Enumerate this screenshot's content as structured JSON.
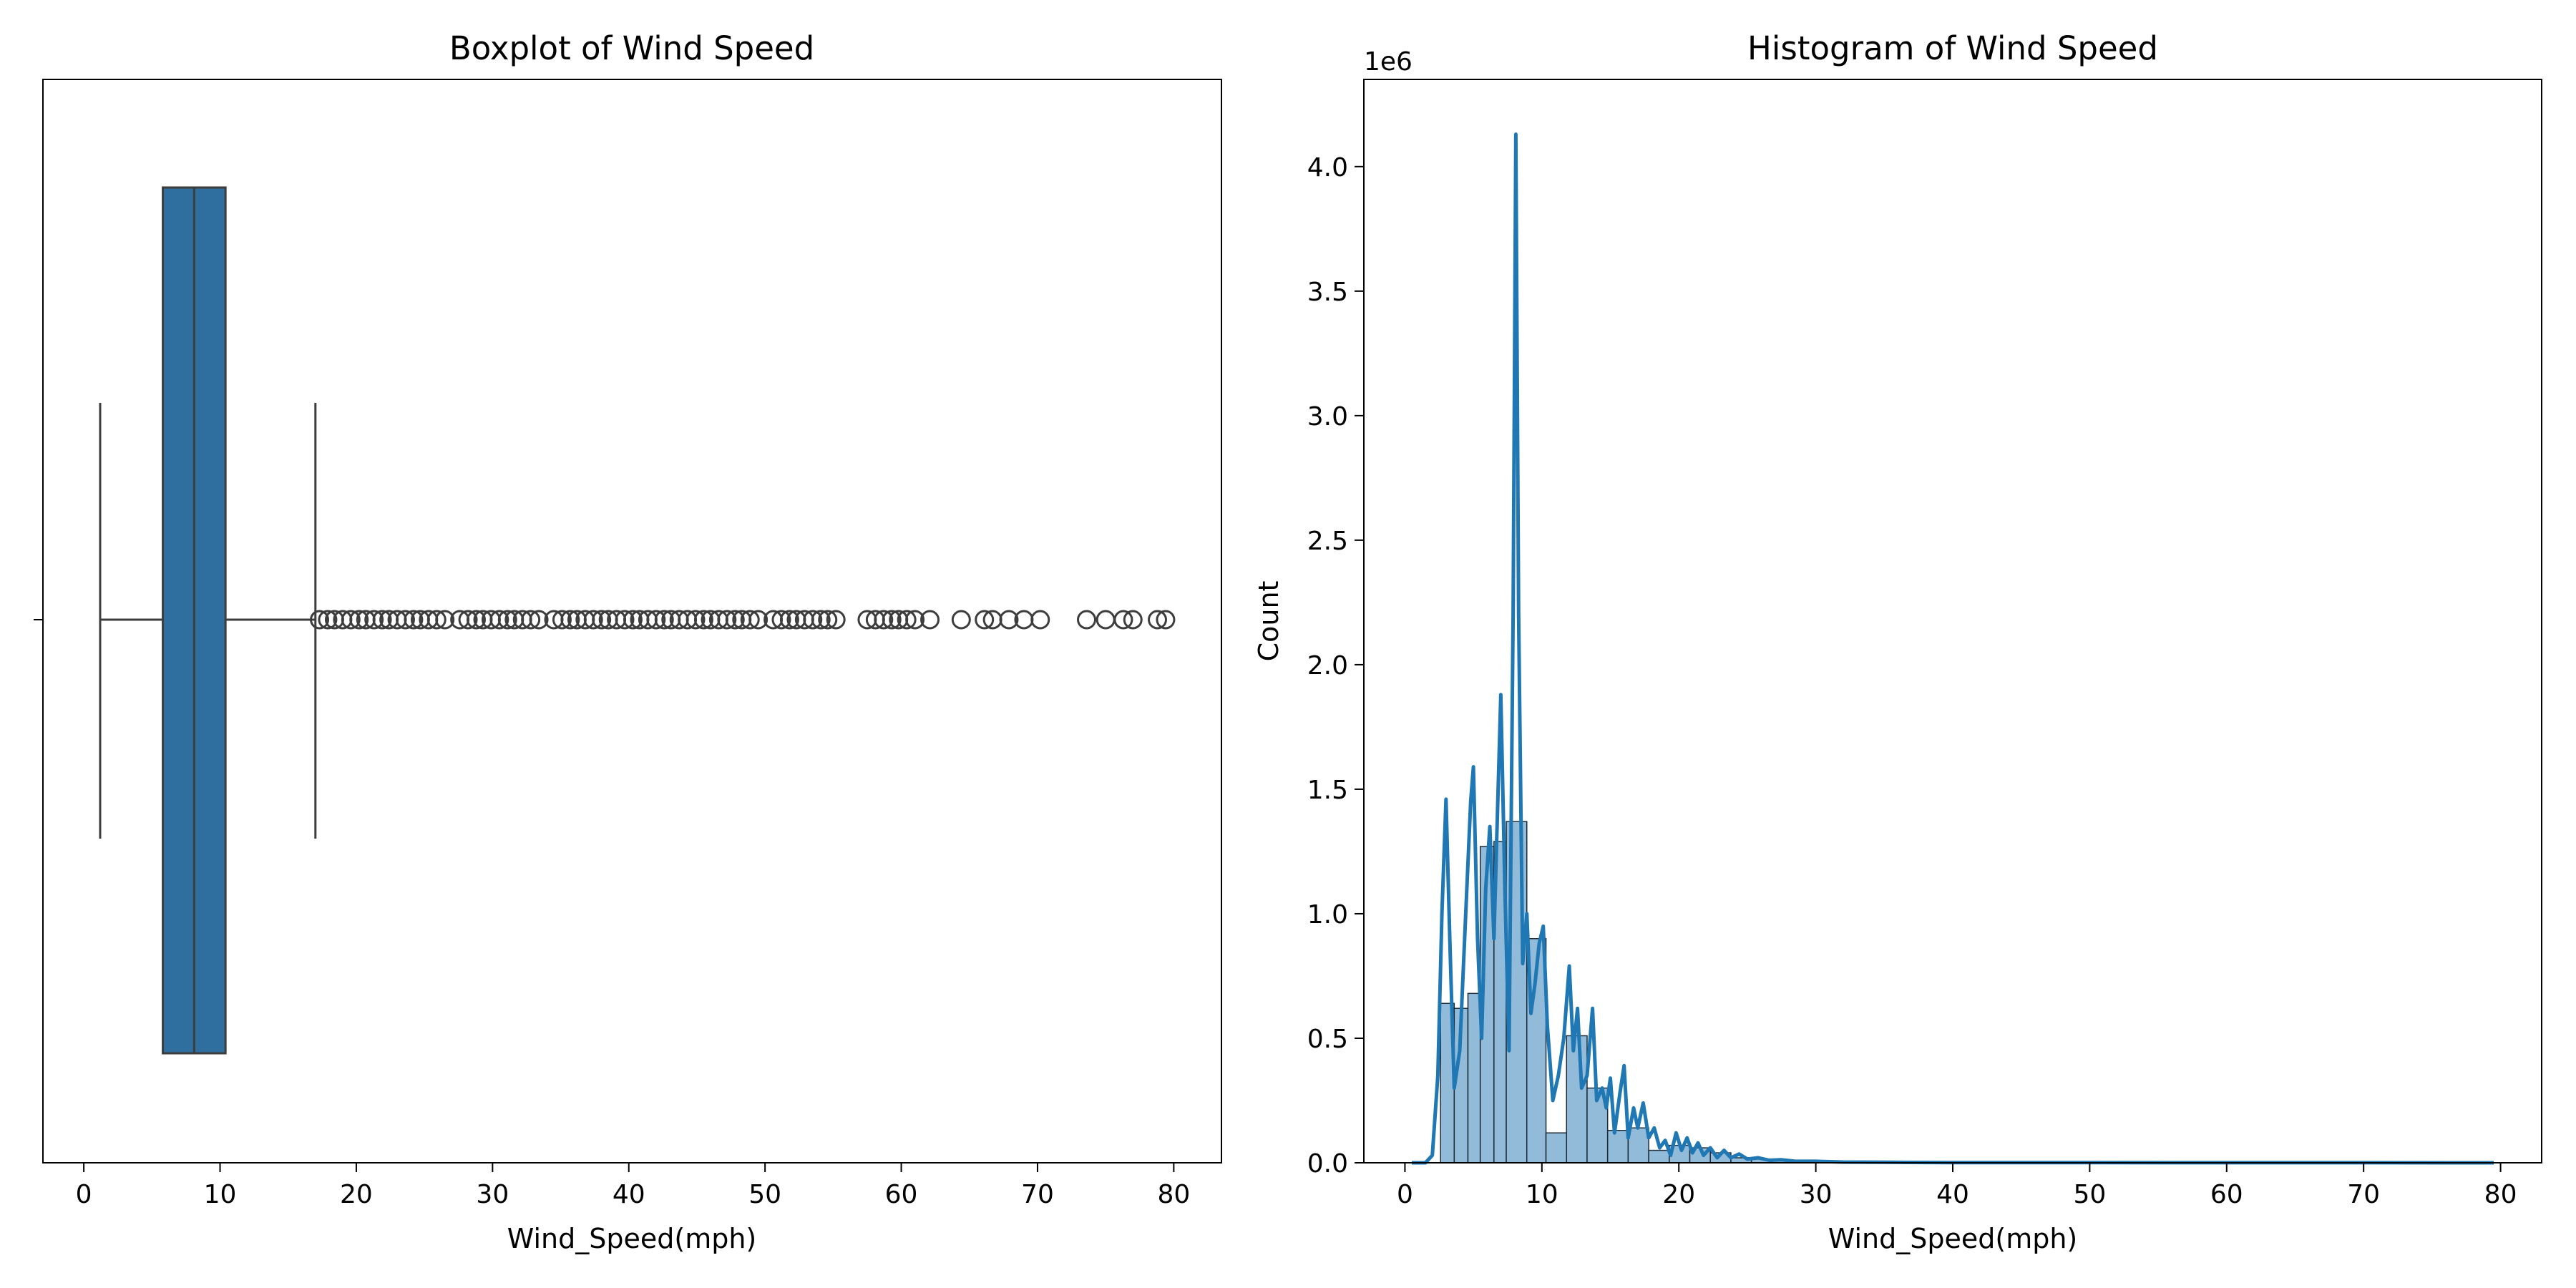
{
  "chart_data": [
    {
      "type": "box",
      "title": "Boxplot of Wind Speed",
      "xlabel": "Wind_Speed(mph)",
      "ylabel": "",
      "xlim": [
        -3,
        83.5
      ],
      "xticks": [
        0,
        10,
        20,
        30,
        40,
        50,
        60,
        70,
        80
      ],
      "grid": false,
      "box": {
        "whisker_low": 1.2,
        "q1": 5.8,
        "median": 8.1,
        "q3": 10.4,
        "whisker_high": 17.0,
        "color": "#2f6f9f"
      },
      "outliers": [
        17.3,
        17.9,
        18.4,
        19.0,
        19.6,
        20.2,
        20.7,
        21.3,
        21.9,
        22.4,
        23.0,
        23.6,
        24.2,
        24.7,
        25.3,
        25.9,
        26.5,
        27.6,
        28.2,
        28.8,
        29.3,
        29.9,
        30.5,
        31.1,
        31.6,
        32.2,
        32.8,
        33.4,
        34.5,
        35.1,
        35.7,
        36.2,
        36.8,
        37.4,
        38.0,
        38.5,
        39.1,
        39.7,
        40.3,
        40.8,
        41.4,
        42.0,
        42.6,
        43.1,
        43.7,
        44.3,
        44.9,
        45.5,
        46.0,
        46.6,
        47.2,
        47.8,
        48.3,
        48.9,
        49.5,
        50.6,
        51.2,
        51.8,
        52.3,
        52.9,
        53.5,
        54.1,
        54.6,
        55.2,
        57.5,
        58.1,
        58.7,
        59.3,
        59.8,
        60.4,
        61.0,
        62.1,
        64.4,
        66.1,
        66.7,
        67.9,
        69.0,
        70.2,
        73.6,
        75.0,
        76.3,
        77.0,
        78.8,
        79.4
      ]
    },
    {
      "type": "histogram",
      "title": "Histogram of Wind Speed",
      "xlabel": "Wind_Speed(mph)",
      "ylabel": "Count",
      "y_offset_label": "1e6",
      "xlim": [
        -3,
        83
      ],
      "ylim": [
        0,
        4.35
      ],
      "xticks": [
        0,
        10,
        20,
        30,
        40,
        50,
        60,
        70,
        80
      ],
      "yticks": [
        0.0,
        0.5,
        1.0,
        1.5,
        2.0,
        2.5,
        3.0,
        3.5,
        4.0
      ],
      "ytick_labels": [
        "0.0",
        "0.5",
        "1.0",
        "1.5",
        "2.0",
        "2.5",
        "3.0",
        "3.5",
        "4.0"
      ],
      "grid": false,
      "bar_color": "#92bad9",
      "line_color": "#1f77b4",
      "bins": [
        {
          "x0": 2.6,
          "x1": 3.6,
          "value": 0.64
        },
        {
          "x0": 3.6,
          "x1": 4.6,
          "value": 0.62
        },
        {
          "x0": 4.6,
          "x1": 5.5,
          "value": 0.68
        },
        {
          "x0": 5.5,
          "x1": 6.5,
          "value": 1.27
        },
        {
          "x0": 6.5,
          "x1": 7.4,
          "value": 1.29
        },
        {
          "x0": 7.4,
          "x1": 8.9,
          "value": 1.37
        },
        {
          "x0": 8.9,
          "x1": 10.3,
          "value": 0.9
        },
        {
          "x0": 10.3,
          "x1": 11.8,
          "value": 0.12
        },
        {
          "x0": 11.8,
          "x1": 13.3,
          "value": 0.51
        },
        {
          "x0": 13.3,
          "x1": 14.8,
          "value": 0.3
        },
        {
          "x0": 14.8,
          "x1": 16.3,
          "value": 0.13
        },
        {
          "x0": 16.3,
          "x1": 17.8,
          "value": 0.14
        },
        {
          "x0": 17.8,
          "x1": 19.3,
          "value": 0.05
        },
        {
          "x0": 19.3,
          "x1": 20.8,
          "value": 0.07
        },
        {
          "x0": 20.8,
          "x1": 22.3,
          "value": 0.06
        },
        {
          "x0": 22.3,
          "x1": 23.8,
          "value": 0.04
        },
        {
          "x0": 23.8,
          "x1": 25.3,
          "value": 0.02
        },
        {
          "x0": 25.3,
          "x1": 26.8,
          "value": 0.015
        },
        {
          "x0": 26.8,
          "x1": 28.3,
          "value": 0.01
        },
        {
          "x0": 28.3,
          "x1": 29.8,
          "value": 0.008
        },
        {
          "x0": 29.8,
          "x1": 31.3,
          "value": 0.005
        }
      ],
      "kde": [
        [
          0.5,
          0.0
        ],
        [
          1.5,
          0.0
        ],
        [
          2.0,
          0.03
        ],
        [
          2.4,
          0.35
        ],
        [
          2.7,
          1.0
        ],
        [
          3.0,
          1.46
        ],
        [
          3.3,
          0.85
        ],
        [
          3.6,
          0.3
        ],
        [
          4.0,
          0.45
        ],
        [
          4.4,
          0.95
        ],
        [
          4.8,
          1.45
        ],
        [
          5.0,
          1.59
        ],
        [
          5.3,
          0.9
        ],
        [
          5.6,
          0.5
        ],
        [
          5.9,
          1.1
        ],
        [
          6.2,
          1.35
        ],
        [
          6.5,
          0.9
        ],
        [
          6.7,
          1.3
        ],
        [
          7.0,
          1.88
        ],
        [
          7.3,
          1.1
        ],
        [
          7.6,
          0.45
        ],
        [
          7.9,
          2.2
        ],
        [
          8.1,
          4.13
        ],
        [
          8.3,
          2.2
        ],
        [
          8.6,
          0.8
        ],
        [
          8.9,
          1.0
        ],
        [
          9.2,
          0.6
        ],
        [
          9.5,
          0.72
        ],
        [
          9.8,
          0.88
        ],
        [
          10.1,
          0.95
        ],
        [
          10.4,
          0.55
        ],
        [
          10.8,
          0.25
        ],
        [
          11.2,
          0.35
        ],
        [
          11.6,
          0.5
        ],
        [
          12.0,
          0.79
        ],
        [
          12.3,
          0.45
        ],
        [
          12.6,
          0.62
        ],
        [
          12.9,
          0.3
        ],
        [
          13.3,
          0.35
        ],
        [
          13.7,
          0.62
        ],
        [
          14.0,
          0.25
        ],
        [
          14.4,
          0.3
        ],
        [
          14.7,
          0.22
        ],
        [
          15.0,
          0.34
        ],
        [
          15.3,
          0.12
        ],
        [
          15.7,
          0.28
        ],
        [
          16.0,
          0.39
        ],
        [
          16.3,
          0.1
        ],
        [
          16.7,
          0.22
        ],
        [
          17.0,
          0.14
        ],
        [
          17.4,
          0.24
        ],
        [
          17.8,
          0.1
        ],
        [
          18.2,
          0.14
        ],
        [
          18.6,
          0.06
        ],
        [
          19.0,
          0.09
        ],
        [
          19.4,
          0.03
        ],
        [
          19.8,
          0.12
        ],
        [
          20.2,
          0.05
        ],
        [
          20.6,
          0.1
        ],
        [
          21.0,
          0.04
        ],
        [
          21.4,
          0.08
        ],
        [
          21.8,
          0.03
        ],
        [
          22.3,
          0.06
        ],
        [
          22.8,
          0.02
        ],
        [
          23.3,
          0.05
        ],
        [
          23.8,
          0.02
        ],
        [
          24.4,
          0.035
        ],
        [
          25.0,
          0.015
        ],
        [
          25.8,
          0.02
        ],
        [
          26.6,
          0.01
        ],
        [
          27.5,
          0.012
        ],
        [
          28.5,
          0.006
        ],
        [
          30.0,
          0.006
        ],
        [
          32.0,
          0.003
        ],
        [
          35.0,
          0.002
        ],
        [
          40.0,
          0.001
        ],
        [
          50.0,
          0.0005
        ],
        [
          60.0,
          0.0003
        ],
        [
          70.0,
          0.0002
        ],
        [
          79.5,
          0.0
        ]
      ]
    }
  ]
}
